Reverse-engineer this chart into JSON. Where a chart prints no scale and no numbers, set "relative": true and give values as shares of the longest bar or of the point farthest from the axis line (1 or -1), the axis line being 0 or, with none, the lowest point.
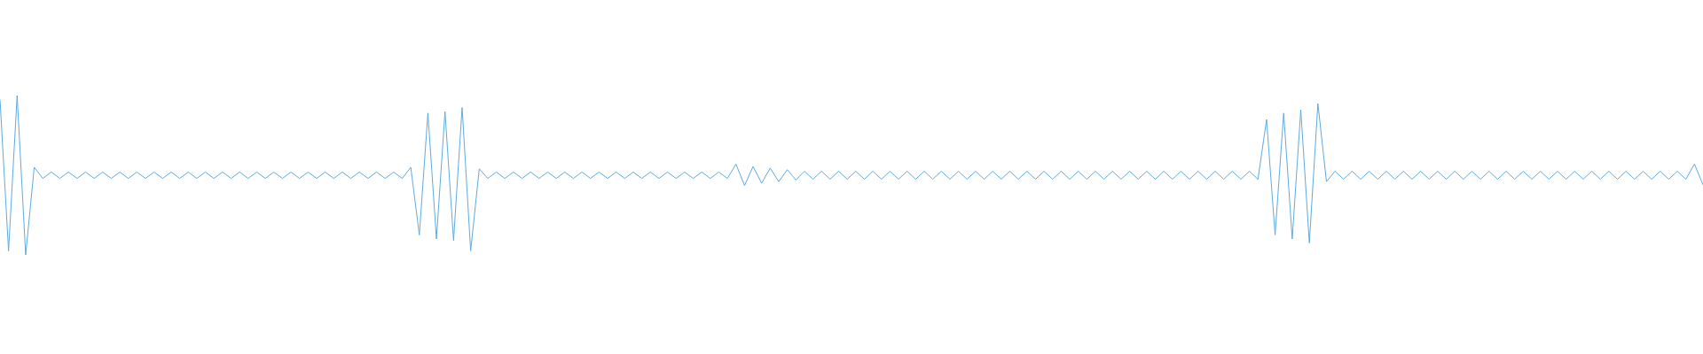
{
  "chart_data": {
    "type": "line",
    "relative": true,
    "categories": [
      null,
      null,
      null,
      null,
      null,
      null,
      null,
      null,
      null,
      null,
      null,
      null,
      null,
      null,
      null,
      null,
      null,
      null,
      null,
      null,
      null,
      null,
      null,
      null,
      null,
      null,
      null,
      null,
      null,
      null,
      null,
      null,
      null,
      null,
      null,
      null,
      null,
      null,
      null,
      null,
      null,
      null,
      null,
      null,
      null,
      null,
      null,
      null,
      null,
      null,
      null,
      null,
      null,
      null,
      null,
      null,
      null,
      null,
      null,
      null,
      null,
      null,
      null,
      null,
      null,
      null,
      null,
      null,
      null,
      null,
      null,
      null,
      null,
      null,
      null,
      null,
      null,
      null,
      null,
      null,
      null,
      null,
      null,
      null,
      null,
      null,
      null,
      null,
      null,
      null,
      null,
      null,
      null,
      null,
      null,
      null,
      null,
      null,
      null,
      null,
      null,
      null,
      null,
      null,
      null,
      null,
      null,
      null,
      null,
      null,
      null,
      null,
      null,
      null,
      null,
      null,
      null,
      null,
      null,
      null,
      null,
      null,
      null,
      null,
      null,
      null,
      null,
      null,
      null,
      null,
      null,
      null,
      null,
      null,
      null,
      null,
      null,
      null,
      null,
      null,
      null,
      null,
      null,
      null,
      null,
      null,
      null,
      null,
      null,
      null,
      null,
      null,
      null,
      null,
      null,
      null,
      null,
      null,
      null,
      null,
      null,
      null,
      null,
      null,
      null,
      null,
      null,
      null,
      null,
      null,
      null,
      null,
      null,
      null,
      null,
      null,
      null,
      null,
      null,
      null,
      null,
      null,
      null,
      null,
      null,
      null,
      null,
      null,
      null,
      null,
      null,
      null,
      null,
      null,
      null,
      null,
      null,
      null,
      null,
      null
    ],
    "series": [
      {
        "color": "#5eaae0",
        "values": [
          0.975,
          0.025,
          1,
          0,
          0.55,
          0.48,
          0.52,
          0.48,
          0.52,
          0.48,
          0.52,
          0.48,
          0.52,
          0.48,
          0.52,
          0.48,
          0.52,
          0.48,
          0.52,
          0.48,
          0.52,
          0.48,
          0.52,
          0.48,
          0.52,
          0.48,
          0.52,
          0.48,
          0.52,
          0.48,
          0.52,
          0.48,
          0.52,
          0.48,
          0.52,
          0.48,
          0.52,
          0.48,
          0.52,
          0.48,
          0.52,
          0.48,
          0.52,
          0.48,
          0.52,
          0.48,
          0.52,
          0.48,
          0.55,
          0.125,
          0.89,
          0.1,
          0.9,
          0.09,
          0.925,
          0.025,
          0.54,
          0.48,
          0.52,
          0.48,
          0.52,
          0.48,
          0.52,
          0.48,
          0.52,
          0.48,
          0.52,
          0.48,
          0.52,
          0.48,
          0.52,
          0.48,
          0.52,
          0.48,
          0.52,
          0.48,
          0.52,
          0.48,
          0.52,
          0.48,
          0.52,
          0.48,
          0.52,
          0.48,
          0.52,
          0.48,
          0.57,
          0.435,
          0.555,
          0.45,
          0.545,
          0.46,
          0.535,
          0.47,
          0.525,
          0.475,
          0.525,
          0.475,
          0.525,
          0.475,
          0.525,
          0.475,
          0.525,
          0.475,
          0.525,
          0.475,
          0.525,
          0.475,
          0.525,
          0.475,
          0.525,
          0.475,
          0.525,
          0.475,
          0.525,
          0.475,
          0.525,
          0.475,
          0.525,
          0.475,
          0.525,
          0.475,
          0.525,
          0.475,
          0.525,
          0.475,
          0.525,
          0.475,
          0.525,
          0.475,
          0.525,
          0.475,
          0.525,
          0.475,
          0.525,
          0.475,
          0.525,
          0.475,
          0.525,
          0.475,
          0.525,
          0.475,
          0.525,
          0.475,
          0.525,
          0.475,
          0.525,
          0.475,
          0.85,
          0.125,
          0.89,
          0.1,
          0.91,
          0.075,
          0.95,
          0.46,
          0.525,
          0.475,
          0.525,
          0.475,
          0.525,
          0.475,
          0.525,
          0.475,
          0.525,
          0.475,
          0.525,
          0.475,
          0.525,
          0.475,
          0.525,
          0.475,
          0.525,
          0.475,
          0.525,
          0.475,
          0.525,
          0.475,
          0.525,
          0.475,
          0.525,
          0.475,
          0.525,
          0.475,
          0.525,
          0.475,
          0.525,
          0.475,
          0.525,
          0.475,
          0.525,
          0.475,
          0.525,
          0.475,
          0.525,
          0.475,
          0.525,
          0.475,
          0.57,
          0.44
        ]
      }
    ]
  }
}
